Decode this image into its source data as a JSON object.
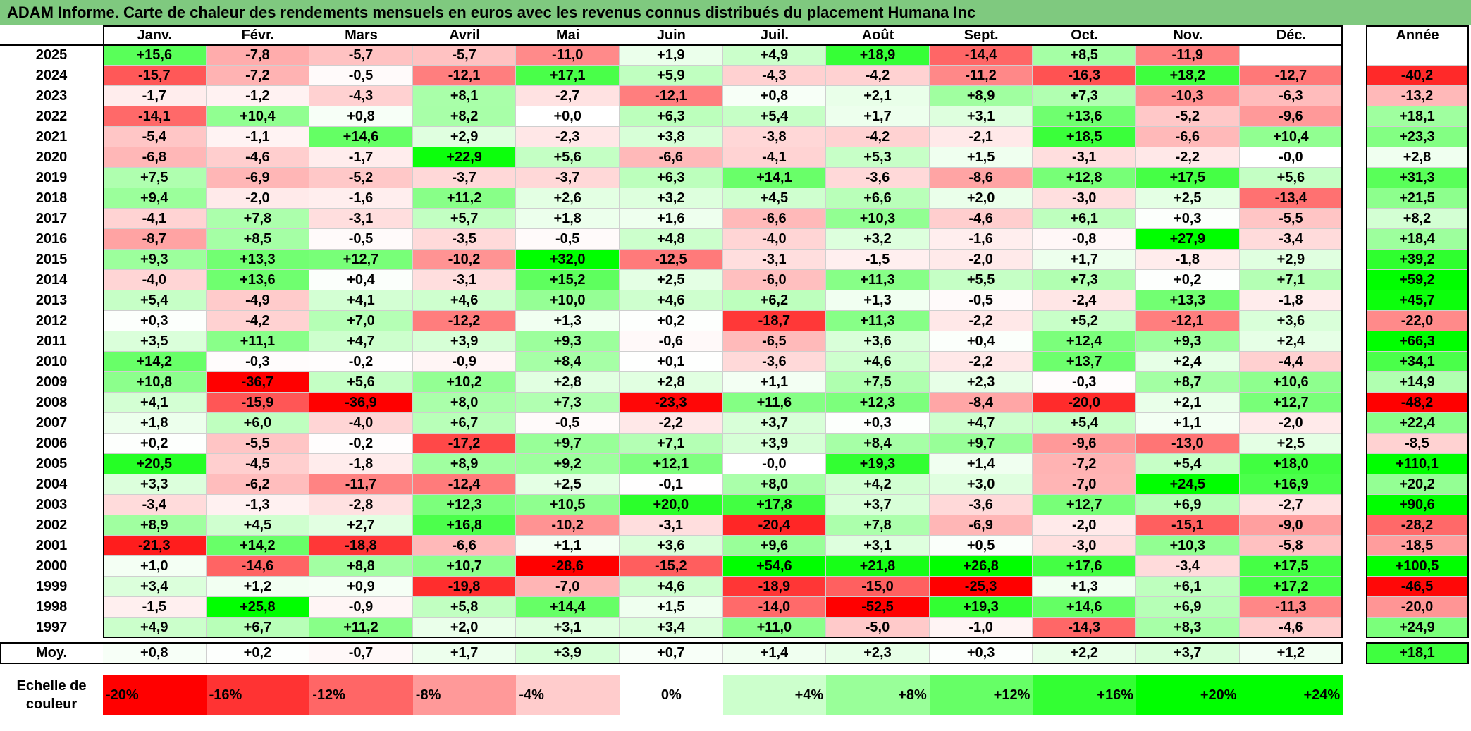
{
  "title": "ADAM Informe. Carte de chaleur des rendements mensuels en euros avec les revenus connus distribués du placement Humana Inc",
  "chart_data": {
    "type": "heatmap",
    "months": [
      "Janv.",
      "Févr.",
      "Mars",
      "Avril",
      "Mai",
      "Juin",
      "Juil.",
      "Août",
      "Sept.",
      "Oct.",
      "Nov.",
      "Déc."
    ],
    "annual_header": "Année",
    "average_label": "Moy.",
    "rows": [
      {
        "year": "2025",
        "values": [
          "+15,6",
          "-7,8",
          "-5,7",
          "-5,7",
          "-11,0",
          "+1,9",
          "+4,9",
          "+18,9",
          "-14,4",
          "+8,5",
          "-11,9",
          ""
        ],
        "annual": ""
      },
      {
        "year": "2024",
        "values": [
          "-15,7",
          "-7,2",
          "-0,5",
          "-12,1",
          "+17,1",
          "+5,9",
          "-4,3",
          "-4,2",
          "-11,2",
          "-16,3",
          "+18,2",
          "-12,7"
        ],
        "annual": "-40,2"
      },
      {
        "year": "2023",
        "values": [
          "-1,7",
          "-1,2",
          "-4,3",
          "+8,1",
          "-2,7",
          "-12,1",
          "+0,8",
          "+2,1",
          "+8,9",
          "+7,3",
          "-10,3",
          "-6,3"
        ],
        "annual": "-13,2"
      },
      {
        "year": "2022",
        "values": [
          "-14,1",
          "+10,4",
          "+0,8",
          "+8,2",
          "+0,0",
          "+6,3",
          "+5,4",
          "+1,7",
          "+3,1",
          "+13,6",
          "-5,2",
          "-9,6"
        ],
        "annual": "+18,1"
      },
      {
        "year": "2021",
        "values": [
          "-5,4",
          "-1,1",
          "+14,6",
          "+2,9",
          "-2,3",
          "+3,8",
          "-3,8",
          "-4,2",
          "-2,1",
          "+18,5",
          "-6,6",
          "+10,4"
        ],
        "annual": "+23,3"
      },
      {
        "year": "2020",
        "values": [
          "-6,8",
          "-4,6",
          "-1,7",
          "+22,9",
          "+5,6",
          "-6,6",
          "-4,1",
          "+5,3",
          "+1,5",
          "-3,1",
          "-2,2",
          "-0,0"
        ],
        "annual": "+2,8"
      },
      {
        "year": "2019",
        "values": [
          "+7,5",
          "-6,9",
          "-5,2",
          "-3,7",
          "-3,7",
          "+6,3",
          "+14,1",
          "-3,6",
          "-8,6",
          "+12,8",
          "+17,5",
          "+5,6"
        ],
        "annual": "+31,3"
      },
      {
        "year": "2018",
        "values": [
          "+9,4",
          "-2,0",
          "-1,6",
          "+11,2",
          "+2,6",
          "+3,2",
          "+4,5",
          "+6,6",
          "+2,0",
          "-3,0",
          "+2,5",
          "-13,4"
        ],
        "annual": "+21,5"
      },
      {
        "year": "2017",
        "values": [
          "-4,1",
          "+7,8",
          "-3,1",
          "+5,7",
          "+1,8",
          "+1,6",
          "-6,6",
          "+10,3",
          "-4,6",
          "+6,1",
          "+0,3",
          "-5,5"
        ],
        "annual": "+8,2"
      },
      {
        "year": "2016",
        "values": [
          "-8,7",
          "+8,5",
          "-0,5",
          "-3,5",
          "-0,5",
          "+4,8",
          "-4,0",
          "+3,2",
          "-1,6",
          "-0,8",
          "+27,9",
          "-3,4"
        ],
        "annual": "+18,4"
      },
      {
        "year": "2015",
        "values": [
          "+9,3",
          "+13,3",
          "+12,7",
          "-10,2",
          "+32,0",
          "-12,5",
          "-3,1",
          "-1,5",
          "-2,0",
          "+1,7",
          "-1,8",
          "+2,9"
        ],
        "annual": "+39,2"
      },
      {
        "year": "2014",
        "values": [
          "-4,0",
          "+13,6",
          "+0,4",
          "-3,1",
          "+15,2",
          "+2,5",
          "-6,0",
          "+11,3",
          "+5,5",
          "+7,3",
          "+0,2",
          "+7,1"
        ],
        "annual": "+59,2"
      },
      {
        "year": "2013",
        "values": [
          "+5,4",
          "-4,9",
          "+4,1",
          "+4,6",
          "+10,0",
          "+4,6",
          "+6,2",
          "+1,3",
          "-0,5",
          "-2,4",
          "+13,3",
          "-1,8"
        ],
        "annual": "+45,7"
      },
      {
        "year": "2012",
        "values": [
          "+0,3",
          "-4,2",
          "+7,0",
          "-12,2",
          "+1,3",
          "+0,2",
          "-18,7",
          "+11,3",
          "-2,2",
          "+5,2",
          "-12,1",
          "+3,6"
        ],
        "annual": "-22,0"
      },
      {
        "year": "2011",
        "values": [
          "+3,5",
          "+11,1",
          "+4,7",
          "+3,9",
          "+9,3",
          "-0,6",
          "-6,5",
          "+3,6",
          "+0,4",
          "+12,4",
          "+9,3",
          "+2,4"
        ],
        "annual": "+66,3"
      },
      {
        "year": "2010",
        "values": [
          "+14,2",
          "-0,3",
          "-0,2",
          "-0,9",
          "+8,4",
          "+0,1",
          "-3,6",
          "+4,6",
          "-2,2",
          "+13,7",
          "+2,4",
          "-4,4"
        ],
        "annual": "+34,1"
      },
      {
        "year": "2009",
        "values": [
          "+10,8",
          "-36,7",
          "+5,6",
          "+10,2",
          "+2,8",
          "+2,8",
          "+1,1",
          "+7,5",
          "+2,3",
          "-0,3",
          "+8,7",
          "+10,6"
        ],
        "annual": "+14,9"
      },
      {
        "year": "2008",
        "values": [
          "+4,1",
          "-15,9",
          "-36,9",
          "+8,0",
          "+7,3",
          "-23,3",
          "+11,6",
          "+12,3",
          "-8,4",
          "-20,0",
          "+2,1",
          "+12,7"
        ],
        "annual": "-48,2"
      },
      {
        "year": "2007",
        "values": [
          "+1,8",
          "+6,0",
          "-4,0",
          "+6,7",
          "-0,5",
          "-2,2",
          "+3,7",
          "+0,3",
          "+4,7",
          "+5,4",
          "+1,1",
          "-2,0"
        ],
        "annual": "+22,4"
      },
      {
        "year": "2006",
        "values": [
          "+0,2",
          "-5,5",
          "-0,2",
          "-17,2",
          "+9,7",
          "+7,1",
          "+3,9",
          "+8,4",
          "+9,7",
          "-9,6",
          "-13,0",
          "+2,5"
        ],
        "annual": "-8,5"
      },
      {
        "year": "2005",
        "values": [
          "+20,5",
          "-4,5",
          "-1,8",
          "+8,9",
          "+9,2",
          "+12,1",
          "-0,0",
          "+19,3",
          "+1,4",
          "-7,2",
          "+5,4",
          "+18,0"
        ],
        "annual": "+110,1"
      },
      {
        "year": "2004",
        "values": [
          "+3,3",
          "-6,2",
          "-11,7",
          "-12,4",
          "+2,5",
          "-0,1",
          "+8,0",
          "+4,2",
          "+3,0",
          "-7,0",
          "+24,5",
          "+16,9"
        ],
        "annual": "+20,2"
      },
      {
        "year": "2003",
        "values": [
          "-3,4",
          "-1,3",
          "-2,8",
          "+12,3",
          "+10,5",
          "+20,0",
          "+17,8",
          "+3,7",
          "-3,6",
          "+12,7",
          "+6,9",
          "-2,7"
        ],
        "annual": "+90,6"
      },
      {
        "year": "2002",
        "values": [
          "+8,9",
          "+4,5",
          "+2,7",
          "+16,8",
          "-10,2",
          "-3,1",
          "-20,4",
          "+7,8",
          "-6,9",
          "-2,0",
          "-15,1",
          "-9,0"
        ],
        "annual": "-28,2"
      },
      {
        "year": "2001",
        "values": [
          "-21,3",
          "+14,2",
          "-18,8",
          "-6,6",
          "+1,1",
          "+3,6",
          "+9,6",
          "+3,1",
          "+0,5",
          "-3,0",
          "+10,3",
          "-5,8"
        ],
        "annual": "-18,5"
      },
      {
        "year": "2000",
        "values": [
          "+1,0",
          "-14,6",
          "+8,8",
          "+10,7",
          "-28,6",
          "-15,2",
          "+54,6",
          "+21,8",
          "+26,8",
          "+17,6",
          "-3,4",
          "+17,5"
        ],
        "annual": "+100,5"
      },
      {
        "year": "1999",
        "values": [
          "+3,4",
          "+1,2",
          "+0,9",
          "-19,8",
          "-7,0",
          "+4,6",
          "-18,9",
          "-15,0",
          "-25,3",
          "+1,3",
          "+6,1",
          "+17,2"
        ],
        "annual": "-46,5"
      },
      {
        "year": "1998",
        "values": [
          "-1,5",
          "+25,8",
          "-0,9",
          "+5,8",
          "+14,4",
          "+1,5",
          "-14,0",
          "-52,5",
          "+19,3",
          "+14,6",
          "+6,9",
          "-11,3"
        ],
        "annual": "-20,0"
      },
      {
        "year": "1997",
        "values": [
          "+4,9",
          "+6,7",
          "+11,2",
          "+2,0",
          "+3,1",
          "+3,4",
          "+11,0",
          "-5,0",
          "-1,0",
          "-14,3",
          "+8,3",
          "-4,6"
        ],
        "annual": "+24,9"
      }
    ],
    "averages": [
      "+0,8",
      "+0,2",
      "-0,7",
      "+1,7",
      "+3,9",
      "+0,7",
      "+1,4",
      "+2,3",
      "+0,3",
      "+2,2",
      "+3,7",
      "+1,2"
    ],
    "average_annual": "+18,1",
    "color_scale_label": "Echelle de couleur",
    "color_scale": [
      {
        "label": "-20%",
        "value": -20
      },
      {
        "label": "-16%",
        "value": -16
      },
      {
        "label": "-12%",
        "value": -12
      },
      {
        "label": "-8%",
        "value": -8
      },
      {
        "label": "-4%",
        "value": -4
      },
      {
        "label": "0%",
        "value": 0
      },
      {
        "label": "+4%",
        "value": 4
      },
      {
        "label": "+8%",
        "value": 8
      },
      {
        "label": "+12%",
        "value": 12
      },
      {
        "label": "+16%",
        "value": 16
      },
      {
        "label": "+20%",
        "value": 20
      },
      {
        "label": "+24%",
        "value": 24
      }
    ],
    "colors": {
      "negative": "#ff0000",
      "positive": "#00ff00",
      "neutral": "#ffffff",
      "title_bar": "#7fc97f"
    }
  }
}
